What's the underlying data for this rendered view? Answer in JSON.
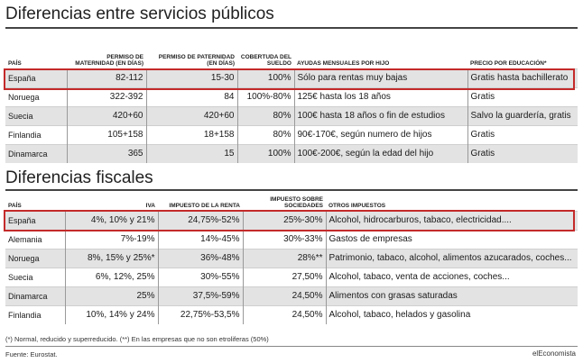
{
  "section1": {
    "title": "Diferencias entre servicios públicos",
    "headers": [
      "País",
      "Permiso de maternidad (en días)",
      "Permiso de paternidad (en días)",
      "Cobertuda del sueldo",
      "Ayudas mensuales por hijo",
      "Precio por educación*"
    ],
    "rows": [
      [
        "España",
        "82-112",
        "15-30",
        "100%",
        "Sólo para rentas muy bajas",
        "Gratis hasta bachillerato"
      ],
      [
        "Noruega",
        "322-392",
        "84",
        "100%-80%",
        "125€ hasta los 18 años",
        "Gratis"
      ],
      [
        "Suecia",
        "420+60",
        "420+60",
        "80%",
        "100€ hasta 18 años o fin de estudios",
        "Salvo la guardería, gratis"
      ],
      [
        "Finlandia",
        "105+158",
        "18+158",
        "80%",
        "90€-170€, según numero de hijos",
        "Gratis"
      ],
      [
        "Dinamarca",
        "365",
        "15",
        "100%",
        "100€-200€, según la edad del hijo",
        "Gratis"
      ]
    ]
  },
  "section2": {
    "title": "Diferencias fiscales",
    "headers": [
      "País",
      "IVA",
      "Impuesto de la renta",
      "Impuesto sobre sociedades",
      "Otros impuestos"
    ],
    "rows": [
      [
        "España",
        "4%, 10% y 21%",
        "24,75%-52%",
        "25%-30%",
        "Alcohol, hidrocarburos, tabaco, electricidad...."
      ],
      [
        "Alemania",
        "7%-19%",
        "14%-45%",
        "30%-33%",
        "Gastos de empresas"
      ],
      [
        "Noruega",
        "8%, 15% y 25%*",
        "36%-48%",
        "28%**",
        "Patrimonio, tabaco, alcohol, alimentos azucarados, coches..."
      ],
      [
        "Suecia",
        "6%, 12%, 25%",
        "30%-55%",
        "27,50%",
        "Alcohol, tabaco, venta de acciones, coches..."
      ],
      [
        "Dinamarca",
        "25%",
        "37,5%-59%",
        "24,50%",
        "Alimentos con grasas saturadas"
      ],
      [
        "Finlandia",
        "10%, 14% y 24%",
        "22,75%-53,5%",
        "24,50%",
        "Alcohol, tabaco, helados y gasolina"
      ]
    ]
  },
  "footnote": "(*) Normal, reducido y superreducido. (**) En las empresas que no son etroliferas (50%)",
  "source": "Fuente: Eurostat.",
  "brand": "elEconomista",
  "highlight_color": "#c42a2a"
}
